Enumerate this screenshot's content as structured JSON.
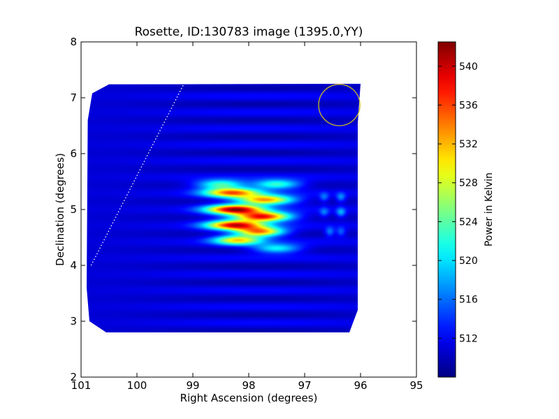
{
  "chart_data": {
    "type": "heatmap",
    "title": "Rosette, ID:130783 image (1395.0,YY)",
    "xlabel": "Right Ascension (degrees)",
    "ylabel": "Declination (degrees)",
    "xlim": [
      101,
      95
    ],
    "ylim": [
      2,
      8
    ],
    "x_ticks": [
      101,
      100,
      99,
      98,
      97,
      96,
      95
    ],
    "y_ticks": [
      2,
      3,
      4,
      5,
      6,
      7,
      8
    ],
    "colorbar": {
      "label": "Power in Kelvin",
      "range": [
        508,
        542.5
      ],
      "ticks": [
        512,
        516,
        520,
        524,
        528,
        532,
        536,
        540
      ],
      "colormap": "jet"
    },
    "image": {
      "background_value": 511,
      "mask_polygon_radec": [
        [
          100.5,
          7.24
        ],
        [
          100.8,
          7.08
        ],
        [
          100.88,
          6.6
        ],
        [
          100.9,
          3.6
        ],
        [
          100.85,
          3.0
        ],
        [
          100.55,
          2.8
        ],
        [
          96.2,
          2.8
        ],
        [
          96.05,
          3.2
        ],
        [
          96.05,
          6.55
        ],
        [
          96.0,
          7.25
        ]
      ],
      "blobs": [
        {
          "ra": 98.25,
          "dec": 5.0,
          "peak": 540.5,
          "sigma_ra": 0.35,
          "sigma_dec": 0.06
        },
        {
          "ra": 97.75,
          "dec": 4.87,
          "peak": 539,
          "sigma_ra": 0.35,
          "sigma_dec": 0.06
        },
        {
          "ra": 98.25,
          "dec": 4.72,
          "peak": 538,
          "sigma_ra": 0.35,
          "sigma_dec": 0.06
        },
        {
          "ra": 98.3,
          "dec": 5.3,
          "peak": 534,
          "sigma_ra": 0.35,
          "sigma_dec": 0.06
        },
        {
          "ra": 97.7,
          "dec": 5.17,
          "peak": 534,
          "sigma_ra": 0.35,
          "sigma_dec": 0.06
        },
        {
          "ra": 97.8,
          "dec": 4.6,
          "peak": 534,
          "sigma_ra": 0.3,
          "sigma_dec": 0.06
        },
        {
          "ra": 98.2,
          "dec": 4.45,
          "peak": 530,
          "sigma_ra": 0.3,
          "sigma_dec": 0.06
        },
        {
          "ra": 97.5,
          "dec": 5.45,
          "peak": 524,
          "sigma_ra": 0.3,
          "sigma_dec": 0.06
        },
        {
          "ra": 98.5,
          "dec": 5.45,
          "peak": 524,
          "sigma_ra": 0.3,
          "sigma_dec": 0.06
        },
        {
          "ra": 97.5,
          "dec": 4.3,
          "peak": 522,
          "sigma_ra": 0.3,
          "sigma_dec": 0.06
        },
        {
          "ra": 96.35,
          "dec": 4.95,
          "peak": 518,
          "sigma_ra": 0.06,
          "sigma_dec": 0.06
        },
        {
          "ra": 96.35,
          "dec": 5.22,
          "peak": 517,
          "sigma_ra": 0.06,
          "sigma_dec": 0.06
        },
        {
          "ra": 96.55,
          "dec": 4.6,
          "peak": 517,
          "sigma_ra": 0.06,
          "sigma_dec": 0.06
        },
        {
          "ra": 96.35,
          "dec": 4.6,
          "peak": 516,
          "sigma_ra": 0.06,
          "sigma_dec": 0.06
        },
        {
          "ra": 96.65,
          "dec": 5.22,
          "peak": 516,
          "sigma_ra": 0.06,
          "sigma_dec": 0.06
        },
        {
          "ra": 96.65,
          "dec": 4.95,
          "peak": 516,
          "sigma_ra": 0.06,
          "sigma_dec": 0.06
        }
      ],
      "fringe_period_dec": 0.29,
      "fringe_amplitude": 1.5
    },
    "annotations": {
      "circle": {
        "ra": 96.38,
        "dec": 6.87,
        "radius_deg": 0.37,
        "color": "#ccbb22"
      },
      "dotted_line": {
        "from": [
          100.82,
          4.0
        ],
        "to": [
          99.17,
          7.23
        ],
        "color": "#ffffff"
      }
    }
  }
}
